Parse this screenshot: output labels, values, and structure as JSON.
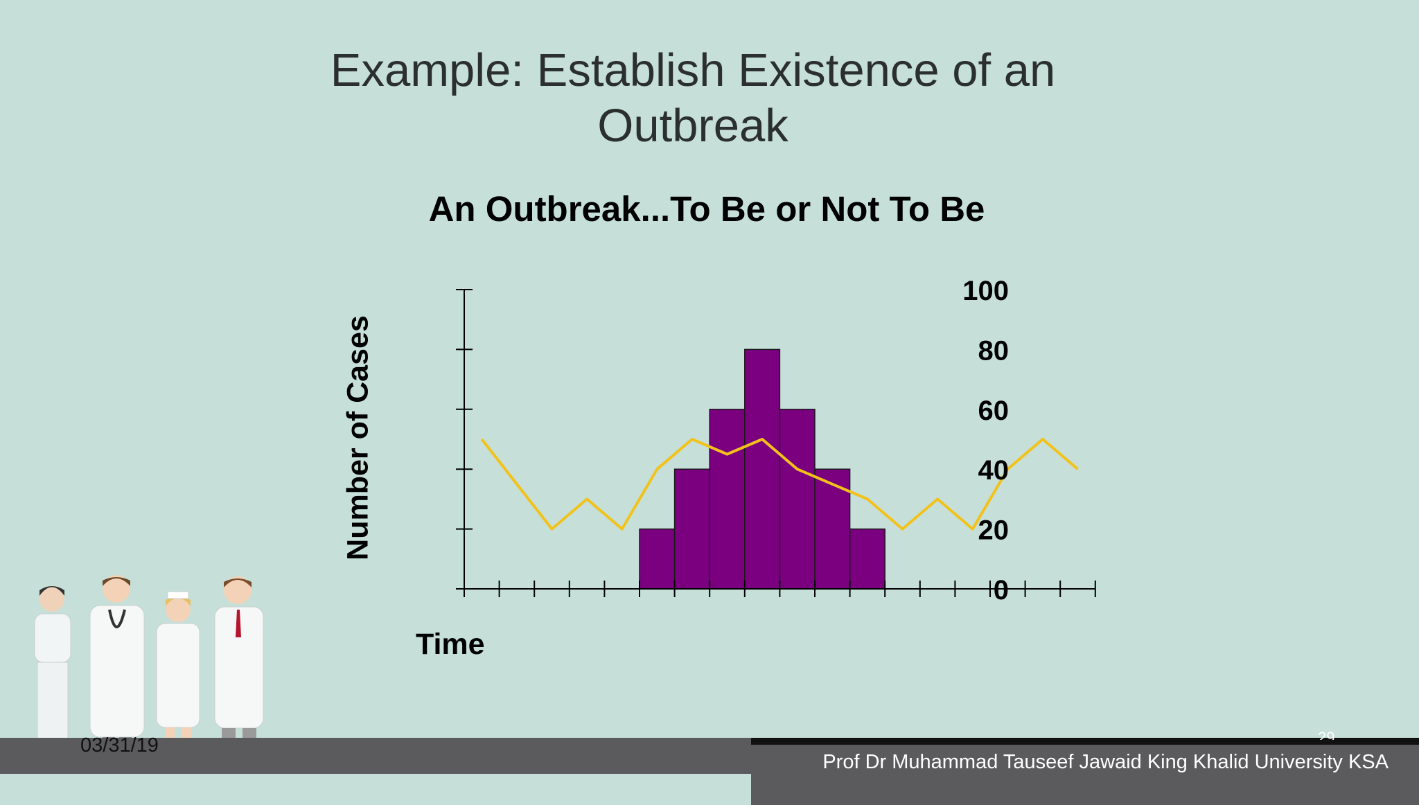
{
  "slide": {
    "title_line1": "Example: Establish Existence of an",
    "title_line2": "Outbreak",
    "date": "03/31/19",
    "page_number": "29",
    "credit": "Prof Dr Muhammad Tauseef Jawaid King Khalid University KSA"
  },
  "chart_data": {
    "type": "bar",
    "title": "An Outbreak...To Be or Not To Be",
    "ylabel": "Number of Cases",
    "xlabel": "Time",
    "ylim": [
      0,
      100
    ],
    "y_ticks": [
      0,
      20,
      40,
      60,
      80,
      100
    ],
    "x_intervals": 18,
    "bars": {
      "start_interval": 5,
      "values": [
        20,
        40,
        60,
        80,
        60,
        40,
        20
      ],
      "color": "#7a0080"
    },
    "line": {
      "type": "line",
      "x": [
        0.5,
        2.5,
        3.5,
        4.5,
        5.5,
        6.5,
        7.5,
        8.5,
        9.5,
        10.5,
        11.5,
        12.5,
        13.5,
        14.5,
        15.5,
        16.5,
        17.5
      ],
      "values": [
        50,
        20,
        30,
        20,
        40,
        50,
        45,
        50,
        40,
        35,
        30,
        20,
        30,
        20,
        40,
        50,
        40
      ],
      "color": "#f2c21b"
    },
    "grid": false
  }
}
